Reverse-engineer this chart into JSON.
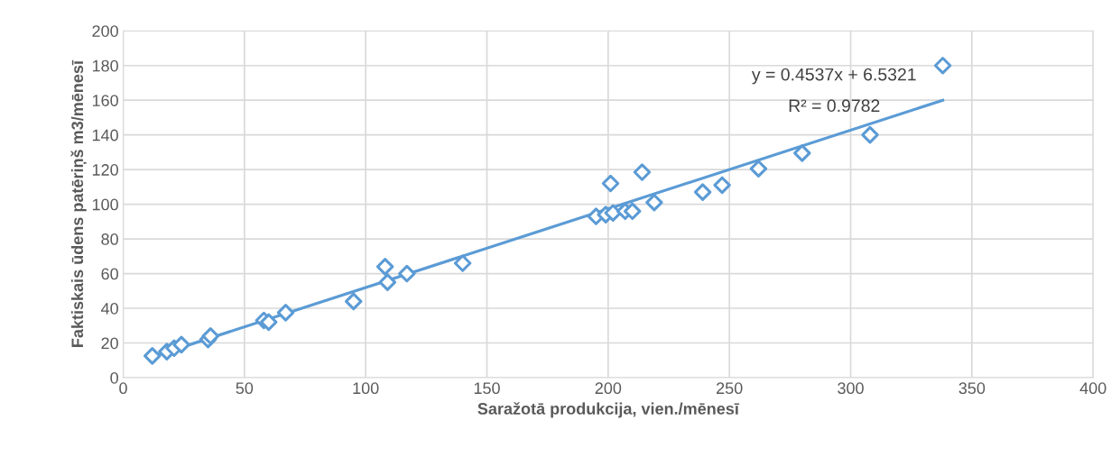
{
  "chart_data": {
    "type": "scatter",
    "xlabel": "Saražotā produkcija, vien./mēnesī",
    "ylabel": "Faktiskais ūdens patēriņš m3/mēnesī",
    "xlim": [
      0,
      400
    ],
    "xticks": [
      0,
      50,
      100,
      150,
      200,
      250,
      300,
      350,
      400
    ],
    "ylim": [
      0,
      200
    ],
    "yticks": [
      0,
      20,
      40,
      60,
      80,
      100,
      120,
      140,
      160,
      180,
      200
    ],
    "grid": true,
    "marker": "diamond",
    "legend": false,
    "annotations": [
      "y = 0.4537x + 6.5321",
      "R² = 0.9782"
    ],
    "series": [
      {
        "color": "#5b9bd5",
        "x": [
          12,
          18,
          21,
          24,
          35,
          36,
          58,
          60,
          67,
          95,
          108,
          109,
          117,
          140,
          195,
          199,
          201,
          202,
          207,
          210,
          214,
          219,
          239,
          247,
          262,
          280,
          308,
          338
        ],
        "values": [
          12.5,
          15,
          17,
          19,
          22,
          24,
          33,
          32,
          37.5,
          44,
          64,
          55,
          60,
          66,
          93,
          94,
          112,
          95,
          96,
          96,
          118.5,
          101,
          107,
          111,
          120.5,
          129.5,
          140,
          180
        ]
      },
      {
        "type": "line",
        "marker": "none",
        "color": "#5b9bd5",
        "x": [
          12,
          338
        ],
        "values": [
          12,
          160
        ]
      }
    ]
  }
}
